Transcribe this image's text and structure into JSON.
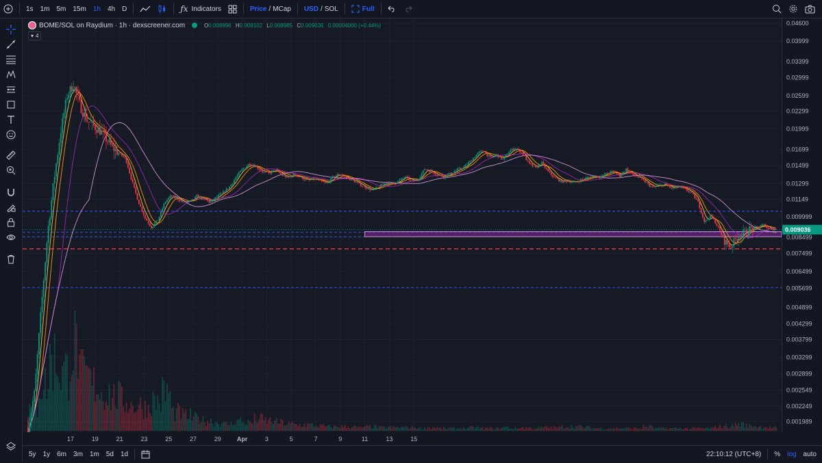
{
  "toolbar": {
    "intervals": [
      "1s",
      "1m",
      "5m",
      "15m",
      "1h",
      "4h",
      "D"
    ],
    "active_interval": "1h",
    "indicators_label": "Indicators",
    "price_label": "Price",
    "mcap_label": "MCap",
    "usd_label": "USD",
    "sol_label": "SOL",
    "full_label": "Full",
    "slash": "/"
  },
  "legend": {
    "title": "BOME/SOL on Raydium · 1h · dexscreener.com",
    "o_label": "O",
    "o_value": "0.008996",
    "h_label": "H",
    "h_value": "0.009102",
    "l_label": "L",
    "l_value": "0.008985",
    "c_label": "C",
    "c_value": "0.009036",
    "change": "0.00004000 (+0.44%)",
    "indicator_count": "4"
  },
  "price_axis": {
    "ticks": [
      "0.04600",
      "0.03999",
      "0.03399",
      "0.02999",
      "0.02599",
      "0.02299",
      "0.01999",
      "0.01699",
      "0.01499",
      "0.01299",
      "0.01149",
      "0.009999",
      "0.008499",
      "0.007499",
      "0.006499",
      "0.005699",
      "0.004899",
      "0.004299",
      "0.003799",
      "0.003299",
      "0.002899",
      "0.002549",
      "0.002249",
      "0.001989"
    ],
    "current_price": "0.009036"
  },
  "time_axis": {
    "labels": [
      "17",
      "19",
      "21",
      "23",
      "25",
      "27",
      "29",
      "Apr",
      "3",
      "5",
      "7",
      "9",
      "11",
      "13",
      "15"
    ]
  },
  "bottom": {
    "ranges": [
      "5y",
      "1y",
      "6m",
      "3m",
      "1m",
      "5d",
      "1d"
    ],
    "clock": "22:10:12 (UTC+8)",
    "percent": "%",
    "log": "log",
    "auto": "auto"
  },
  "colors": {
    "up": "#089981",
    "down": "#f23645",
    "accent": "#2962ff",
    "zone": "#9c27b0"
  },
  "chart_data": {
    "type": "candlestick",
    "title": "BOME/SOL on Raydium · 1h · dexscreener.com",
    "scale": "log",
    "ylim": [
      0.00185,
      0.0465
    ],
    "x_labels": [
      "17",
      "19",
      "21",
      "23",
      "25",
      "27",
      "29",
      "Apr",
      "3",
      "5",
      "7",
      "9",
      "11",
      "13",
      "15"
    ],
    "price_path": [
      0.0019,
      0.0025,
      0.0048,
      0.0088,
      0.0135,
      0.0195,
      0.026,
      0.0285,
      0.024,
      0.0215,
      0.0205,
      0.0198,
      0.0185,
      0.0172,
      0.0165,
      0.0158,
      0.0132,
      0.0112,
      0.0099,
      0.0092,
      0.0098,
      0.0112,
      0.0118,
      0.0115,
      0.0112,
      0.0113,
      0.0118,
      0.0115,
      0.0112,
      0.0117,
      0.0121,
      0.0127,
      0.0137,
      0.0146,
      0.0152,
      0.0149,
      0.0143,
      0.0141,
      0.0145,
      0.0139,
      0.0136,
      0.014,
      0.0136,
      0.0133,
      0.0135,
      0.0132,
      0.013,
      0.0138,
      0.014,
      0.0136,
      0.0133,
      0.0129,
      0.0126,
      0.0123,
      0.0127,
      0.0131,
      0.0129,
      0.0133,
      0.0137,
      0.0132,
      0.0135,
      0.0146,
      0.0143,
      0.0139,
      0.0137,
      0.0141,
      0.0145,
      0.0148,
      0.0155,
      0.0164,
      0.0169,
      0.0159,
      0.0163,
      0.0157,
      0.0168,
      0.0172,
      0.0165,
      0.0152,
      0.0147,
      0.0153,
      0.0142,
      0.0136,
      0.0132,
      0.0133,
      0.0131,
      0.0134,
      0.0136,
      0.0138,
      0.0137,
      0.0141,
      0.0143,
      0.0138,
      0.0146,
      0.0139,
      0.0136,
      0.0131,
      0.0126,
      0.0128,
      0.0129,
      0.0125,
      0.0127,
      0.0124,
      0.0121,
      0.0112,
      0.0096,
      0.0101,
      0.0093,
      0.0083,
      0.0079,
      0.0085,
      0.0088,
      0.0091,
      0.0092,
      0.0094,
      0.0091,
      0.00904
    ],
    "volume_profile": [
      0.25,
      0.55,
      0.85,
      0.7,
      1.0,
      0.65,
      0.55,
      0.45,
      0.4,
      0.35,
      0.3,
      0.28,
      0.35,
      0.45,
      0.22,
      0.18,
      0.15,
      0.12,
      0.1,
      0.08,
      0.12,
      0.1,
      0.14,
      0.12,
      0.1,
      0.08,
      0.07,
      0.07,
      0.06,
      0.05,
      0.05,
      0.05,
      0.04,
      0.05,
      0.04,
      0.04,
      0.04,
      0.04,
      0.03,
      0.04,
      0.03,
      0.03,
      0.03,
      0.04,
      0.03,
      0.03,
      0.04,
      0.03,
      0.04,
      0.03,
      0.04,
      0.04,
      0.05,
      0.05,
      0.04,
      0.03,
      0.03,
      0.03,
      0.03,
      0.03,
      0.05,
      0.03,
      0.03,
      0.03,
      0.03,
      0.03,
      0.03,
      0.05,
      0.06,
      0.08,
      0.06,
      0.05,
      0.04,
      0.03
    ],
    "horizontal_levels": [
      {
        "price": 0.01045,
        "style": "dashed",
        "color": "#2962ff"
      },
      {
        "price": 0.009036,
        "style": "dotted",
        "color": "#089981"
      },
      {
        "price": 0.00885,
        "style": "dashed",
        "color": "#2962ff"
      },
      {
        "price": 0.00855,
        "style": "dashed",
        "color": "#2962ff"
      },
      {
        "price": 0.00777,
        "style": "dashed",
        "color": "#f23645"
      },
      {
        "price": 0.00573,
        "style": "dashed",
        "color": "#2962ff"
      }
    ],
    "zone": {
      "from_x_label": "11",
      "low": 0.00855,
      "high": 0.0089,
      "color": "#9c27b0"
    }
  }
}
